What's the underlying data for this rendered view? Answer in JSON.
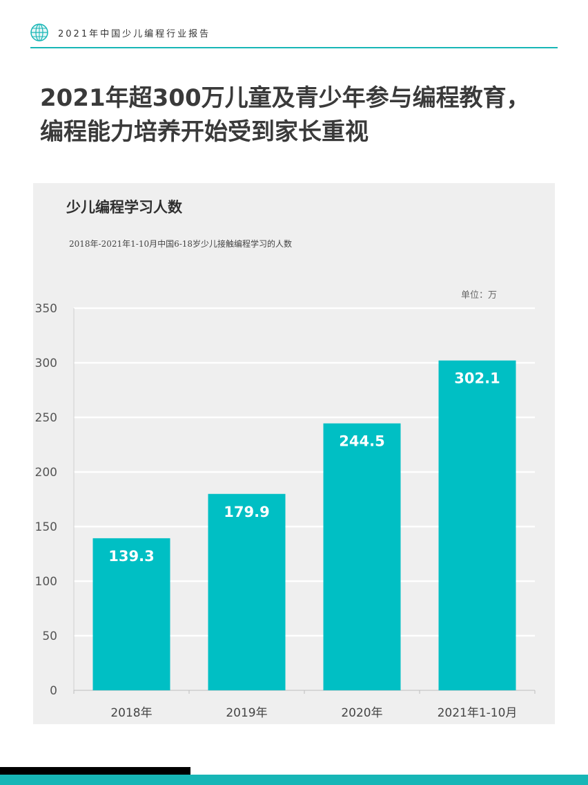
{
  "header": {
    "title": "2021年中国少儿编程行业报告",
    "logo_icon": "globe-icon",
    "accent_color": "#17b6b6"
  },
  "headline": {
    "line1": "2021年超300万儿童及青少年参与编程教育，",
    "line2": "编程能力培养开始受到家长重视"
  },
  "chart_data": {
    "type": "bar",
    "title": "少儿编程学习人数",
    "subtitle": "2018年-2021年1-10月中国6-18岁少儿接触编程学习的人数",
    "unit_label": "单位：万",
    "categories": [
      "2018年",
      "2019年",
      "2020年",
      "2021年1-10月"
    ],
    "values": [
      139.3,
      179.9,
      244.5,
      302.1
    ],
    "data_labels": [
      "139.3",
      "179.9",
      "244.5",
      "302.1"
    ],
    "ylim": [
      0,
      350
    ],
    "yticks": [
      "0",
      "50",
      "100",
      "150",
      "200",
      "250",
      "300",
      "350"
    ],
    "grid": true,
    "bar_color": "#00bfc4"
  }
}
